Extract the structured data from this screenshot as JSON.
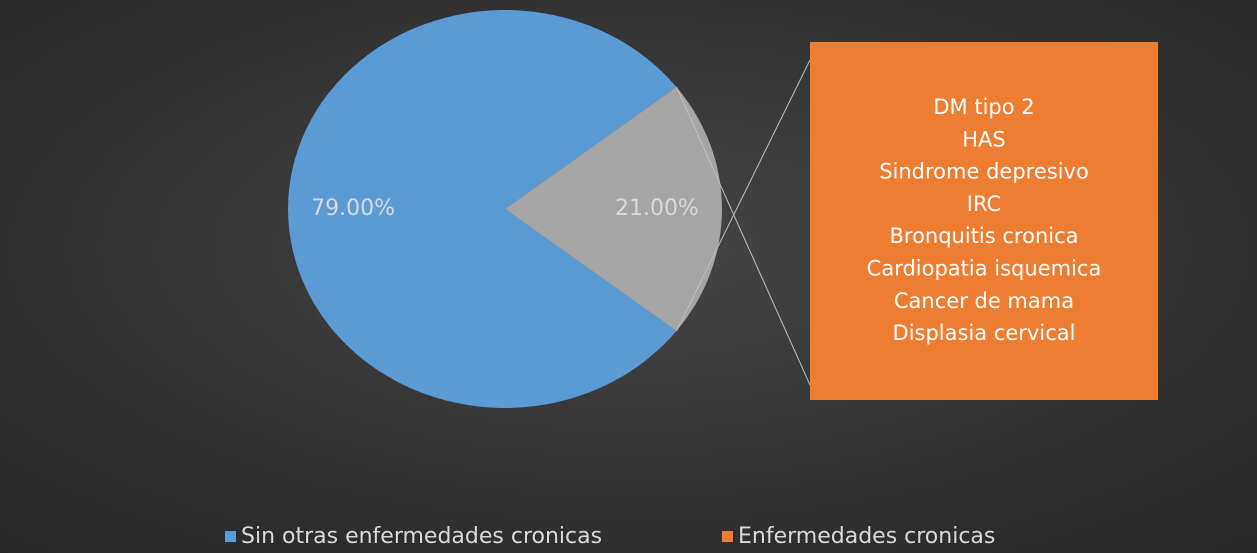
{
  "chart_data": {
    "type": "pie",
    "categories": [
      "Sin otras enfermedades cronicas",
      "Enfermedades cronicas"
    ],
    "values": [
      79,
      21
    ],
    "value_labels": [
      "79.00%",
      "21.00%"
    ],
    "slice_colors": [
      "#5b9bd5",
      "#a5a5a5"
    ],
    "legend_colors": [
      "#5b9bd5",
      "#ed7d31"
    ],
    "breakdown_color": "#ed7d31",
    "breakdown_items": [
      "DM tipo 2",
      "HAS",
      "Sindrome depresivo",
      "IRC",
      "Bronquitis cronica",
      "Cardiopatia isquemica",
      "Cancer de mama",
      "Displasia cervical"
    ]
  }
}
